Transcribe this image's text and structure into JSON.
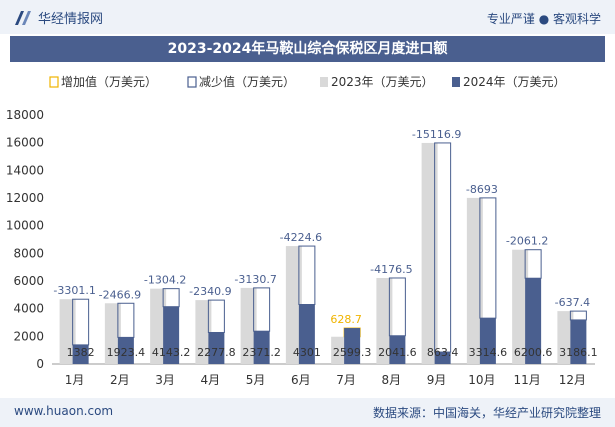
{
  "header": {
    "brand": "华经情报网",
    "tagline": "专业严谨 ● 客观科学"
  },
  "footer": {
    "url": "www.huaon.com",
    "source": "数据来源：中国海关，华经产业研究院整理"
  },
  "colors": {
    "y2023": "#d9d9d9",
    "y2024": "#4a5f8f",
    "increase": "#f0b400",
    "decrease": "#4a5f8f"
  },
  "chart_data": {
    "type": "bar",
    "title": "2023-2024年马鞍山综合保税区月度进口额",
    "categories": [
      "1月",
      "2月",
      "3月",
      "4月",
      "5月",
      "6月",
      "7月",
      "8月",
      "9月",
      "10月",
      "11月",
      "12月"
    ],
    "series": [
      {
        "name": "2024年（万美元）",
        "values": [
          1382,
          1923.4,
          4143.2,
          2277.8,
          2371.2,
          4301,
          2599.3,
          2041.6,
          863.4,
          3314.6,
          6200.6,
          3186.1
        ]
      }
    ],
    "y2023_values": [
      4683.1,
      4390.4,
      5447.4,
      4618.7,
      5501.9,
      8525.6,
      1970.6,
      6218.1,
      15980.3,
      12007.6,
      8261.8,
      3823.5
    ],
    "change_labels": [
      "-3301.1",
      "-2466.9",
      "-1304.2",
      "-2340.9",
      "-3130.7",
      "-4224.6",
      "628.7",
      "-4176.5",
      "-15116.9",
      "-8693",
      "-2061.2",
      "-637.4"
    ],
    "change_direction": [
      "down",
      "down",
      "down",
      "down",
      "down",
      "down",
      "up",
      "down",
      "down",
      "down",
      "down",
      "down"
    ],
    "legend": [
      "增加值（万美元）",
      "减少值（万美元）",
      "2023年（万美元）",
      "2024年（万美元）"
    ],
    "y_ticks": [
      "0",
      "2000",
      "4000",
      "6000",
      "8000",
      "10000",
      "12000",
      "14000",
      "16000",
      "18000"
    ],
    "ylim": [
      0,
      18000
    ],
    "grid": false,
    "legend_position": "top"
  }
}
